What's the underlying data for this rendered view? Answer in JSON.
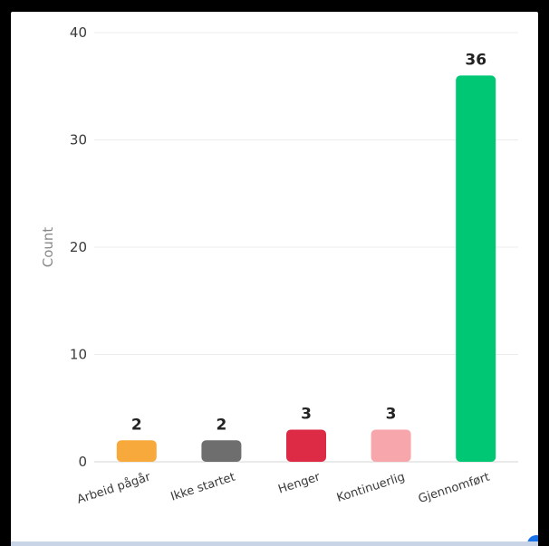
{
  "chart_data": {
    "type": "bar",
    "categories": [
      "Arbeid pågår",
      "Ikke startet",
      "Henger",
      "Kontinuerlig",
      "Gjennomført"
    ],
    "values": [
      2,
      2,
      3,
      3,
      36
    ],
    "colors": [
      "#f7a93b",
      "#6e6e6e",
      "#de2b45",
      "#f7a6ab",
      "#00c774"
    ],
    "title": "",
    "xlabel": "",
    "ylabel": "Count",
    "ylim": [
      0,
      40
    ],
    "yticks": [
      0,
      10,
      20,
      30,
      40
    ],
    "grid": true,
    "data_labels": true
  }
}
